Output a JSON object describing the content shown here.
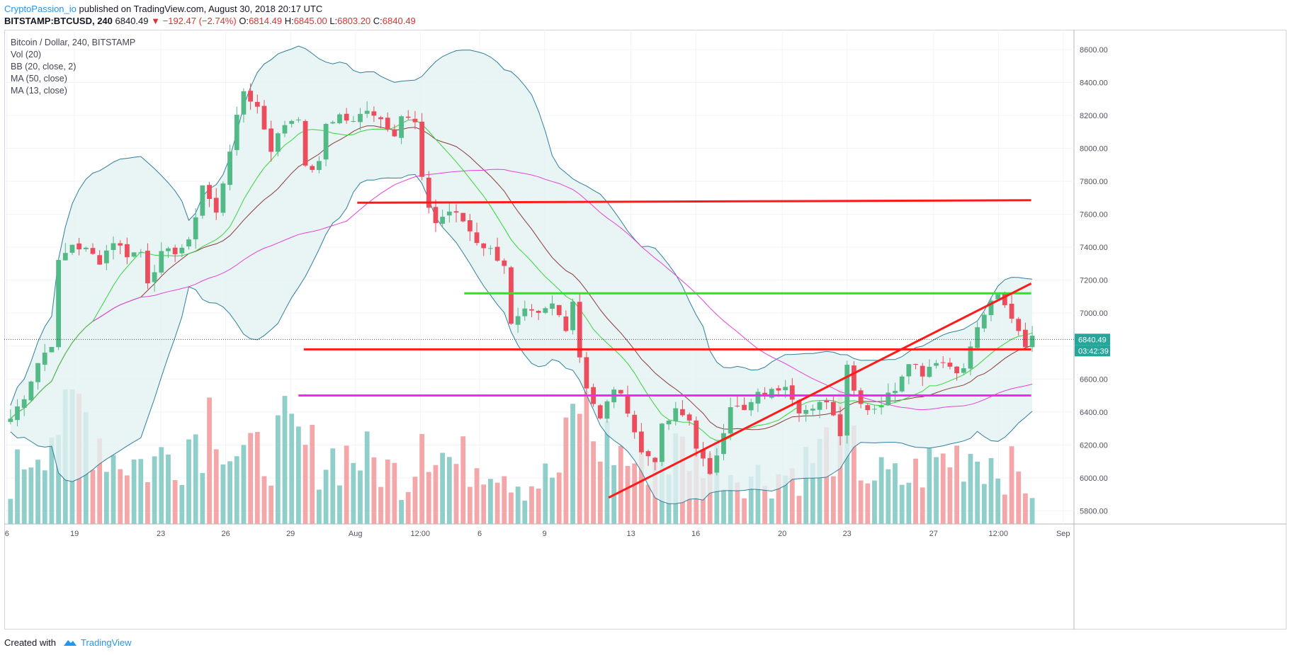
{
  "header": {
    "author": "CryptoPassion_io",
    "published": "published on TradingView.com, August 30, 2018 20:17 UTC",
    "symbol": "BITSTAMP:BTCUSD, 240",
    "last": "6840.49",
    "change": "▼ −192.47 (−2.74%)",
    "o_label": "O:",
    "o_val": "6814.49",
    "h_label": "H:",
    "h_val": "6845.00",
    "l_label": "L:",
    "l_val": "6803.20",
    "c_label": "C:",
    "c_val": "6840.49"
  },
  "legend": {
    "title": "Bitcoin / Dollar, 240, BITSTAMP",
    "items": [
      "Vol (20)",
      "BB (20, close, 2)",
      "MA (50, close)",
      "MA (13, close)"
    ]
  },
  "footer": {
    "created": "Created with",
    "brand": "TradingView"
  },
  "colors": {
    "up": "#53b987",
    "down": "#eb4d5c",
    "vol_up": "#8fcec9",
    "vol_down": "#f3a7a9",
    "bb": "#2f7f9a",
    "bb_fill": "#e4f1f3",
    "ma50": "#e641d8",
    "ma13": "#37d53b",
    "bb_mid": "#8b3a3a",
    "line_red": "#ff1a1a",
    "line_green": "#22e822",
    "line_magenta": "#ff22ff",
    "price_tag": "#26a69a"
  },
  "chart_data": {
    "type": "candlestick",
    "title": "Bitcoin / Dollar, 240, BITSTAMP",
    "ylim": [
      5720,
      8720
    ],
    "y_ticks": [
      "8600.00",
      "8400.00",
      "8200.00",
      "8000.00",
      "7800.00",
      "7600.00",
      "7400.00",
      "7200.00",
      "7000.00",
      "6800.00",
      "6600.00",
      "6400.00",
      "6200.00",
      "6000.00",
      "5800.00"
    ],
    "x_ticks": [
      "6",
      "19",
      "23",
      "26",
      "29",
      "Aug",
      "12:00",
      "6",
      "9",
      "13",
      "16",
      "20",
      "23",
      "27",
      "12:00",
      "Sep"
    ],
    "last_price": "6840.49",
    "countdown": "03:42:39",
    "close_path": [
      [
        0,
        6360
      ],
      [
        2,
        6500
      ],
      [
        4,
        6700
      ],
      [
        6,
        6820
      ],
      [
        7,
        7300
      ],
      [
        9,
        7420
      ],
      [
        11,
        7380
      ],
      [
        13,
        7320
      ],
      [
        15,
        7440
      ],
      [
        17,
        7360
      ],
      [
        19,
        7370
      ],
      [
        20,
        7200
      ],
      [
        22,
        7350
      ],
      [
        24,
        7380
      ],
      [
        26,
        7420
      ],
      [
        28,
        7780
      ],
      [
        30,
        7600
      ],
      [
        32,
        8000
      ],
      [
        34,
        8350
      ],
      [
        36,
        8250
      ],
      [
        38,
        8000
      ],
      [
        40,
        8150
      ],
      [
        42,
        8200
      ],
      [
        43,
        7870
      ],
      [
        45,
        7900
      ],
      [
        46,
        8150
      ],
      [
        48,
        8200
      ],
      [
        50,
        8150
      ],
      [
        52,
        8250
      ],
      [
        54,
        8180
      ],
      [
        56,
        8100
      ],
      [
        57,
        8200
      ],
      [
        59,
        8150
      ],
      [
        60,
        7800
      ],
      [
        61,
        7650
      ],
      [
        62,
        7550
      ],
      [
        64,
        7620
      ],
      [
        66,
        7560
      ],
      [
        68,
        7440
      ],
      [
        70,
        7380
      ],
      [
        72,
        7300
      ],
      [
        73,
        6920
      ],
      [
        75,
        7000
      ],
      [
        77,
        6980
      ],
      [
        79,
        7050
      ],
      [
        81,
        6920
      ],
      [
        82,
        7080
      ],
      [
        83,
        6740
      ],
      [
        84,
        6560
      ],
      [
        86,
        6350
      ],
      [
        88,
        6550
      ],
      [
        90,
        6420
      ],
      [
        92,
        6150
      ],
      [
        94,
        6120
      ],
      [
        95,
        6300
      ],
      [
        97,
        6400
      ],
      [
        99,
        6350
      ],
      [
        100,
        6200
      ],
      [
        102,
        6000
      ],
      [
        103,
        6150
      ],
      [
        105,
        6450
      ],
      [
        107,
        6400
      ],
      [
        109,
        6500
      ],
      [
        111,
        6520
      ],
      [
        113,
        6580
      ],
      [
        115,
        6420
      ],
      [
        117,
        6400
      ],
      [
        119,
        6480
      ],
      [
        121,
        6280
      ],
      [
        122,
        6700
      ],
      [
        123,
        6530
      ],
      [
        125,
        6420
      ],
      [
        127,
        6450
      ],
      [
        129,
        6550
      ],
      [
        131,
        6720
      ],
      [
        133,
        6640
      ],
      [
        135,
        6720
      ],
      [
        137,
        6680
      ],
      [
        139,
        6650
      ],
      [
        140,
        6800
      ],
      [
        142,
        7000
      ],
      [
        144,
        7100
      ],
      [
        146,
        6980
      ],
      [
        148,
        6820
      ],
      [
        149,
        6840
      ]
    ],
    "volume_path": [
      [
        0,
        110
      ],
      [
        5,
        250
      ],
      [
        10,
        300
      ],
      [
        15,
        180
      ],
      [
        20,
        150
      ],
      [
        25,
        200
      ],
      [
        28,
        260
      ],
      [
        30,
        320
      ],
      [
        32,
        200
      ],
      [
        35,
        160
      ],
      [
        40,
        220
      ],
      [
        45,
        170
      ],
      [
        50,
        180
      ],
      [
        55,
        140
      ],
      [
        58,
        110
      ],
      [
        60,
        280
      ],
      [
        62,
        200
      ],
      [
        65,
        150
      ],
      [
        70,
        180
      ],
      [
        75,
        100
      ],
      [
        80,
        130
      ],
      [
        83,
        330
      ],
      [
        85,
        220
      ],
      [
        88,
        200
      ],
      [
        90,
        160
      ],
      [
        95,
        170
      ],
      [
        100,
        200
      ],
      [
        102,
        190
      ],
      [
        105,
        140
      ],
      [
        110,
        120
      ],
      [
        115,
        140
      ],
      [
        120,
        210
      ],
      [
        121,
        300
      ],
      [
        122,
        200
      ],
      [
        125,
        130
      ],
      [
        130,
        110
      ],
      [
        135,
        160
      ],
      [
        140,
        190
      ],
      [
        145,
        150
      ],
      [
        149,
        90
      ]
    ],
    "support_resistance": [
      {
        "color_key": "line_red",
        "price_start": 7670,
        "price_end": 7685,
        "from_frac": 0.33,
        "to_frac": 0.96
      },
      {
        "color_key": "line_green",
        "price_start": 7120,
        "price_end": 7120,
        "from_frac": 0.43,
        "to_frac": 0.96
      },
      {
        "color_key": "line_red",
        "price_start": 6780,
        "price_end": 6780,
        "from_frac": 0.28,
        "to_frac": 0.96
      },
      {
        "color_key": "line_magenta",
        "price_start": 6500,
        "price_end": 6500,
        "from_frac": 0.275,
        "to_frac": 0.96
      },
      {
        "color_key": "line_red",
        "price_start": 5880,
        "price_end": 7180,
        "from_frac": 0.565,
        "to_frac": 0.96
      }
    ]
  }
}
